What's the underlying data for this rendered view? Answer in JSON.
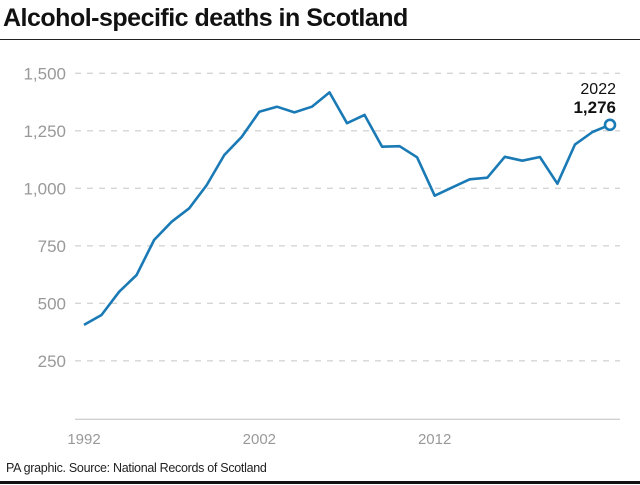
{
  "chart_data": {
    "type": "line",
    "title": "Alcohol-specific deaths in Scotland",
    "xlabel": "",
    "ylabel": "",
    "x": [
      1992,
      1993,
      1994,
      1995,
      1996,
      1997,
      1998,
      1999,
      2000,
      2001,
      2002,
      2003,
      2004,
      2005,
      2006,
      2007,
      2008,
      2009,
      2010,
      2011,
      2012,
      2013,
      2014,
      2015,
      2016,
      2017,
      2018,
      2019,
      2020,
      2021,
      2022
    ],
    "series": [
      {
        "values": [
          406,
          449,
          550,
          623,
          775,
          855,
          913,
          1014,
          1145,
          1224,
          1333,
          1355,
          1330,
          1355,
          1417,
          1283,
          1319,
          1181,
          1183,
          1135,
          968,
          1004,
          1039,
          1046,
          1137,
          1120,
          1136,
          1020,
          1190,
          1245,
          1276
        ]
      }
    ],
    "ylim": [
      0,
      1500
    ],
    "xlim": [
      1992,
      2022
    ],
    "yticks": [
      250,
      500,
      750,
      1000,
      1250,
      1500
    ],
    "ytick_labels": [
      "250",
      "500",
      "750",
      "1,000",
      "1,250",
      "1,500"
    ],
    "xticks": [
      1992,
      2002,
      2012
    ],
    "xtick_labels": [
      "1992",
      "2002",
      "2012"
    ],
    "grid": "horizontal dashed",
    "annotation": {
      "year": "2022",
      "value": "1,276"
    },
    "colors": {
      "line": "#1a7ab5",
      "grid": "#d5d5d5",
      "tick_text": "#999999"
    }
  },
  "footer": {
    "source": "PA graphic. Source: National Records of Scotland"
  }
}
